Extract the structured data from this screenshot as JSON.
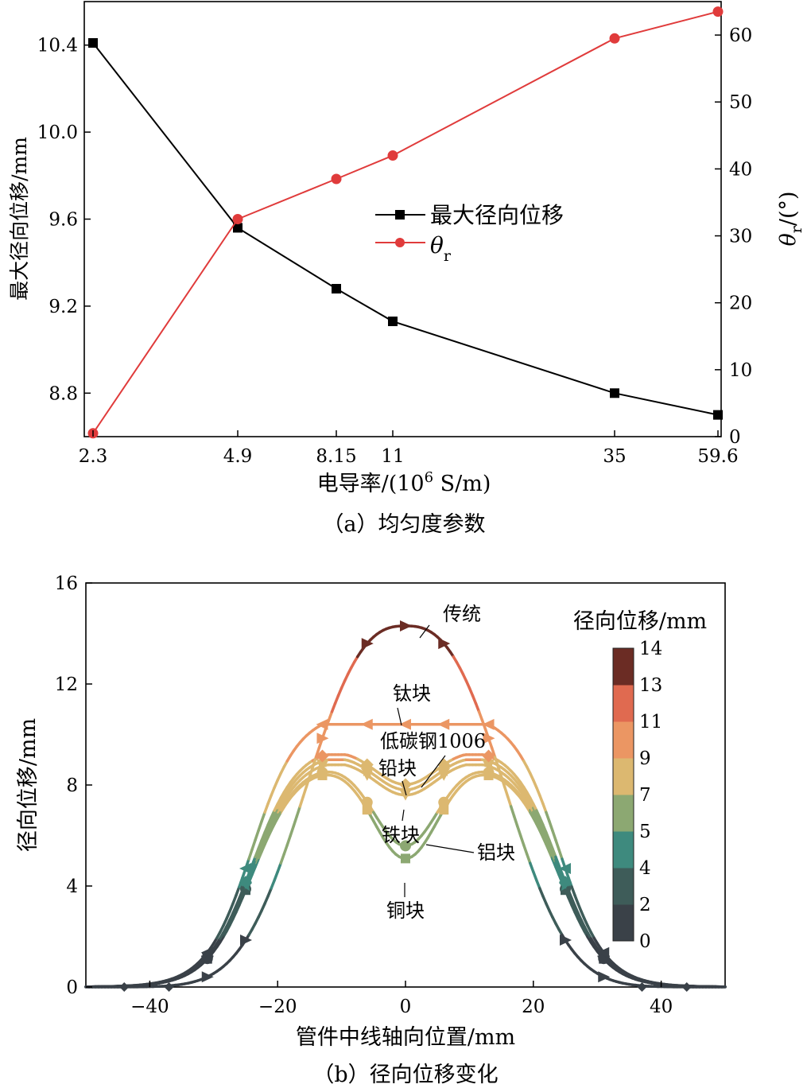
{
  "chart_data": [
    {
      "type": "line",
      "panel": "a",
      "caption": "（a）均匀度参数",
      "xlabel": "电导率/(10⁶ S/m)",
      "x_categories": [
        "2.3",
        "4.9",
        "8.15",
        "11",
        "35",
        "59.6"
      ],
      "ylabel_left": "最大径向位移/mm",
      "ylabel_right": "θr/(°)",
      "ylim_left": [
        8.6,
        10.6
      ],
      "yticks_left": [
        "8.8",
        "9.2",
        "9.6",
        "10.0",
        "10.4"
      ],
      "ylim_right": [
        0,
        65
      ],
      "yticks_right": [
        "0",
        "10",
        "20",
        "30",
        "40",
        "50",
        "60"
      ],
      "legend_position": "center-right",
      "series": [
        {
          "name": "最大径向位移",
          "axis": "left",
          "color": "#000000",
          "marker": "square",
          "values": [
            10.41,
            9.56,
            9.28,
            9.13,
            8.8,
            8.7
          ]
        },
        {
          "name": "θr",
          "axis": "right",
          "color": "#e03b3b",
          "marker": "circle",
          "values": [
            0.5,
            32.5,
            38.5,
            42,
            59.5,
            63.5
          ]
        }
      ]
    },
    {
      "type": "line",
      "panel": "b",
      "caption": "（b）径向位移变化",
      "xlabel": "管件中线轴向位置/mm",
      "ylabel": "径向位移/mm",
      "xlim": [
        -50,
        50
      ],
      "xticks": [
        "−40",
        "−20",
        "0",
        "20",
        "40"
      ],
      "ylim": [
        0,
        16
      ],
      "yticks": [
        "0",
        "4",
        "8",
        "12",
        "16"
      ],
      "colorbar": {
        "title": "径向位移/mm",
        "labels": [
          "0",
          "2",
          "4",
          "5",
          "7",
          "9",
          "11",
          "13",
          "14"
        ],
        "colors": [
          "#3a4148",
          "#3e5c59",
          "#3e8a7e",
          "#8ca872",
          "#dcb870",
          "#eb9663",
          "#e06a50",
          "#6b2c24"
        ]
      },
      "series": [
        {
          "name": "传统",
          "peak": 14.3,
          "center": 14.3,
          "marker": "triangle-right"
        },
        {
          "name": "钛块",
          "peak": 10.4,
          "center": 10.3,
          "marker": "triangle-left"
        },
        {
          "name": "低碳钢1006",
          "peak": 9.2,
          "center": 7.6,
          "marker": "diamond"
        },
        {
          "name": "铅块",
          "peak": 9.0,
          "center": 7.4,
          "marker": "star"
        },
        {
          "name": "铁块",
          "peak": 8.8,
          "center": 7.2,
          "marker": "triangle-down"
        },
        {
          "name": "铝块",
          "peak": 8.6,
          "center": 5.2,
          "marker": "circle"
        },
        {
          "name": "铜块",
          "peak": 8.5,
          "center": 4.7,
          "marker": "square"
        }
      ]
    }
  ]
}
